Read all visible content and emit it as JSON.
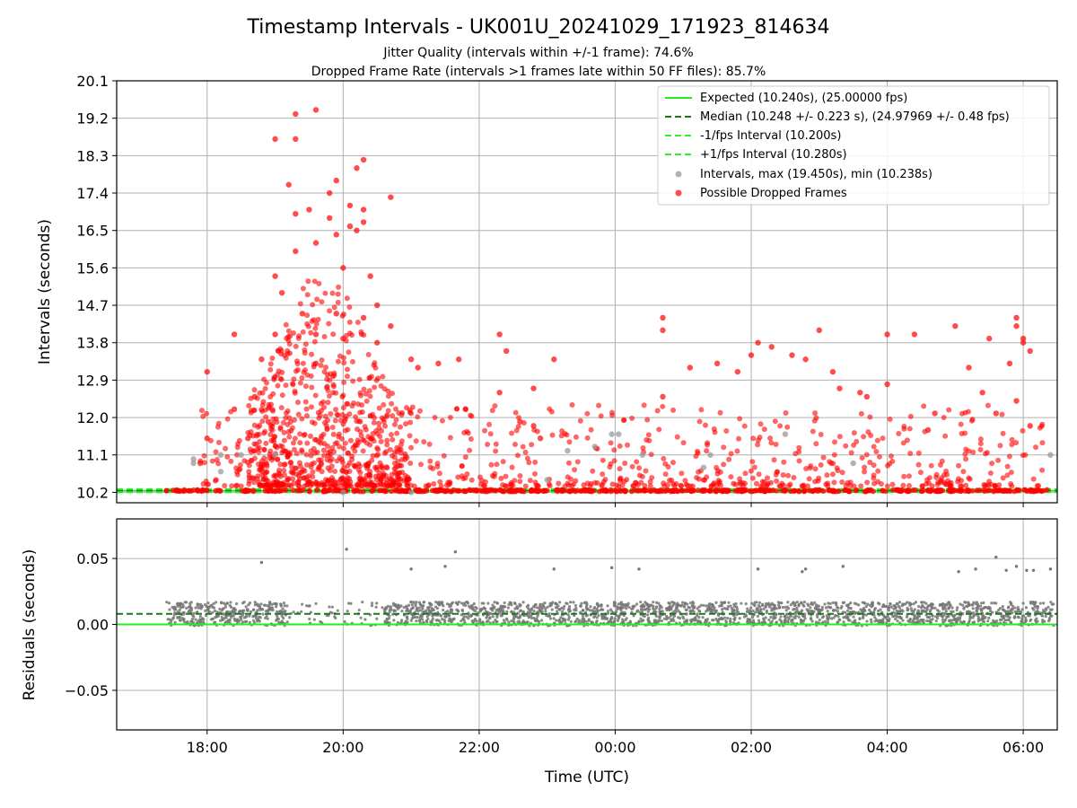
{
  "title": "Timestamp Intervals - UK001U_20241029_171923_814634",
  "subtitle_1": "Jitter Quality (intervals within +/-1 frame): 74.6%",
  "subtitle_2": "Dropped Frame Rate (intervals >1 frames late within 50 FF files): 85.7%",
  "colors": {
    "expected": "#22ee22",
    "median": "#1a7a1a",
    "fps_interval": "#33ee33",
    "intervals": "#999999",
    "dropped": "#ff0000",
    "residuals": "#777777",
    "grid": "#b0b0b0"
  },
  "chart_data": [
    {
      "type": "scatter",
      "panel": "top",
      "ylabel": "Intervals (seconds)",
      "xlabel": "",
      "x_unit": "hours since 00:00 UTC of 2024-10-29 (values past 24 are next day)",
      "xlim": [
        16.67,
        30.5
      ],
      "ylim": [
        9.95,
        20.1
      ],
      "yticks": [
        "10.2",
        "11.1",
        "12.0",
        "12.9",
        "13.8",
        "14.7",
        "15.6",
        "16.5",
        "17.4",
        "18.3",
        "19.2",
        "20.1"
      ],
      "xticks": [
        "18:00",
        "20:00",
        "22:00",
        "00:00",
        "02:00",
        "04:00",
        "06:00"
      ],
      "grid": true,
      "legend_position": "top-right",
      "legend": [
        "Expected (10.240s), (25.00000 fps)",
        "Median (10.248 +/- 0.223 s), (24.97969 +/- 0.48 fps)",
        "-1/fps Interval (10.200s)",
        "+1/fps Interval (10.280s)",
        "Intervals, max (19.450s), min (10.238s)",
        "Possible Dropped Frames"
      ],
      "lines": [
        {
          "name": "Expected",
          "y": 10.24,
          "style": "solid"
        },
        {
          "name": "Median",
          "y": 10.248,
          "style": "dashed"
        },
        {
          "name": "-1/fps Interval",
          "y": 10.2,
          "style": "dashed"
        },
        {
          "name": "+1/fps Interval",
          "y": 10.28,
          "style": "dashed"
        }
      ],
      "series": [
        {
          "name": "Intervals",
          "points": [
            [
              17.8,
              11.0
            ],
            [
              17.8,
              10.9
            ],
            [
              18.2,
              11.1
            ],
            [
              18.2,
              10.7
            ],
            [
              18.5,
              11.1
            ],
            [
              19.0,
              11.1
            ],
            [
              20.0,
              10.2
            ],
            [
              21.0,
              10.2
            ],
            [
              23.0,
              10.5
            ],
            [
              23.3,
              11.2
            ],
            [
              23.7,
              11.3
            ],
            [
              23.95,
              11.6
            ],
            [
              24.05,
              11.6
            ],
            [
              24.4,
              11.1
            ],
            [
              25.3,
              10.8
            ],
            [
              25.4,
              11.1
            ],
            [
              26.5,
              11.6
            ],
            [
              27.5,
              10.9
            ],
            [
              30.4,
              11.1
            ]
          ]
        },
        {
          "name": "Possible Dropped Frames",
          "points": [
            [
              18.0,
              13.1
            ],
            [
              18.0,
              11.5
            ],
            [
              17.9,
              10.9
            ],
            [
              18.4,
              14.0
            ],
            [
              18.4,
              12.2
            ],
            [
              18.6,
              11.5
            ],
            [
              18.7,
              12.5
            ],
            [
              18.8,
              13.4
            ],
            [
              18.9,
              11.9
            ],
            [
              19.0,
              14.0
            ],
            [
              19.0,
              15.4
            ],
            [
              19.0,
              18.7
            ],
            [
              19.1,
              15.0
            ],
            [
              19.2,
              17.6
            ],
            [
              19.3,
              19.3
            ],
            [
              19.3,
              18.7
            ],
            [
              19.3,
              16.9
            ],
            [
              19.3,
              16.0
            ],
            [
              19.4,
              14.5
            ],
            [
              19.5,
              17.0
            ],
            [
              19.6,
              19.4
            ],
            [
              19.6,
              16.2
            ],
            [
              19.6,
              14.0
            ],
            [
              19.6,
              13.3
            ],
            [
              19.8,
              17.4
            ],
            [
              19.8,
              16.8
            ],
            [
              19.9,
              17.7
            ],
            [
              19.9,
              16.4
            ],
            [
              19.9,
              14.5
            ],
            [
              20.0,
              15.6
            ],
            [
              20.0,
              13.9
            ],
            [
              20.1,
              17.1
            ],
            [
              20.1,
              16.6
            ],
            [
              20.2,
              18.0
            ],
            [
              20.2,
              16.5
            ],
            [
              20.3,
              18.2
            ],
            [
              20.3,
              17.0
            ],
            [
              20.3,
              16.7
            ],
            [
              20.3,
              14.4
            ],
            [
              20.4,
              15.4
            ],
            [
              20.5,
              14.7
            ],
            [
              20.5,
              13.8
            ],
            [
              20.7,
              17.3
            ],
            [
              20.7,
              14.2
            ],
            [
              21.0,
              13.4
            ],
            [
              21.1,
              13.2
            ],
            [
              21.4,
              13.3
            ],
            [
              21.7,
              13.4
            ],
            [
              21.8,
              12.2
            ],
            [
              22.3,
              14.0
            ],
            [
              22.3,
              12.6
            ],
            [
              22.4,
              13.6
            ],
            [
              22.6,
              11.9
            ],
            [
              22.8,
              11.8
            ],
            [
              22.8,
              12.7
            ],
            [
              22.9,
              11.5
            ],
            [
              23.1,
              13.4
            ],
            [
              24.7,
              14.4
            ],
            [
              24.7,
              14.1
            ],
            [
              24.7,
              12.5
            ],
            [
              25.1,
              13.2
            ],
            [
              25.5,
              13.3
            ],
            [
              25.8,
              13.1
            ],
            [
              26.0,
              13.5
            ],
            [
              26.1,
              13.8
            ],
            [
              26.3,
              13.7
            ],
            [
              26.6,
              13.5
            ],
            [
              26.8,
              13.4
            ],
            [
              27.0,
              14.1
            ],
            [
              27.2,
              13.1
            ],
            [
              27.3,
              12.7
            ],
            [
              27.6,
              12.6
            ],
            [
              27.7,
              12.5
            ],
            [
              28.0,
              14.0
            ],
            [
              28.0,
              12.8
            ],
            [
              28.4,
              14.0
            ],
            [
              28.6,
              11.7
            ],
            [
              28.7,
              12.1
            ],
            [
              29.0,
              14.2
            ],
            [
              29.2,
              13.2
            ],
            [
              29.4,
              12.6
            ],
            [
              29.5,
              13.9
            ],
            [
              29.6,
              12.1
            ],
            [
              29.8,
              13.3
            ],
            [
              29.9,
              12.4
            ],
            [
              29.9,
              14.4
            ],
            [
              29.9,
              14.2
            ],
            [
              30.0,
              13.9
            ],
            [
              30.0,
              13.8
            ],
            [
              30.1,
              13.6
            ],
            [
              30.1,
              11.8
            ]
          ]
        }
      ]
    },
    {
      "type": "scatter",
      "panel": "bottom",
      "ylabel": "Residuals (seconds)",
      "xlabel": "Time (UTC)",
      "xlim": [
        16.67,
        30.5
      ],
      "ylim": [
        -0.08,
        0.08
      ],
      "yticks": [
        "0.05",
        "0.00",
        "−0.05"
      ],
      "xticks": [
        "18:00",
        "20:00",
        "22:00",
        "00:00",
        "02:00",
        "04:00",
        "06:00"
      ],
      "grid": true,
      "lines": [
        {
          "name": "Expected",
          "y": 0.0,
          "style": "solid"
        },
        {
          "name": "Median",
          "y": 0.008,
          "style": "dashed"
        }
      ],
      "series": [
        {
          "name": "Residuals",
          "points": [
            [
              18.8,
              0.047
            ],
            [
              20.05,
              0.057
            ],
            [
              21.0,
              0.042
            ],
            [
              21.5,
              0.044
            ],
            [
              21.65,
              0.055
            ],
            [
              23.1,
              0.042
            ],
            [
              23.95,
              0.043
            ],
            [
              24.35,
              0.042
            ],
            [
              26.1,
              0.042
            ],
            [
              26.8,
              0.042
            ],
            [
              26.75,
              0.04
            ],
            [
              27.35,
              0.044
            ],
            [
              29.6,
              0.051
            ],
            [
              29.75,
              0.041
            ],
            [
              30.4,
              0.042
            ],
            [
              30.05,
              0.041
            ],
            [
              29.05,
              0.04
            ],
            [
              29.3,
              0.042
            ],
            [
              30.15,
              0.041
            ],
            [
              29.9,
              0.044
            ]
          ]
        }
      ]
    }
  ]
}
